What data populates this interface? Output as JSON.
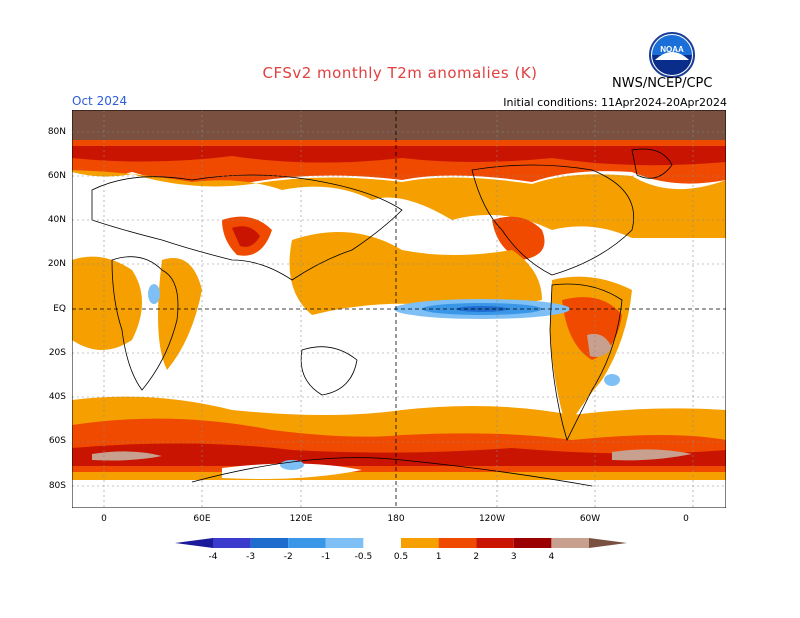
{
  "header": {
    "title": "CFSv2 monthly T2m anomalies (K)",
    "org": "NWS/NCEP/CPC",
    "logo_text": "NOAA",
    "month": "Oct 2024",
    "initial_conditions": "Initial conditions: 11Apr2024-20Apr2024"
  },
  "axes": {
    "lat_labels": [
      "80N",
      "60N",
      "40N",
      "20N",
      "EQ",
      "20S",
      "40S",
      "60S",
      "80S"
    ],
    "lon_labels": [
      "0",
      "60E",
      "120E",
      "180",
      "120W",
      "60W",
      "0"
    ]
  },
  "colorbar": {
    "labels": [
      "-4",
      "-3",
      "-2",
      "-1",
      "-0.5",
      "0.5",
      "1",
      "2",
      "3",
      "4"
    ],
    "colors": [
      "#1a1a9a",
      "#3a3acc",
      "#1f6ccf",
      "#3a97e8",
      "#7ec0f5",
      "#ffffff",
      "#f5a000",
      "#f04a00",
      "#c81400",
      "#9a0000",
      "#c8a090",
      "#7a5040"
    ]
  },
  "colors": {
    "land_outline": "#000000",
    "warm_1": "#f5a000",
    "warm_2": "#f04a00",
    "warm_3": "#c81400",
    "warm_4": "#9a0000",
    "warm_5": "#c8a090",
    "warm_6": "#7a5040",
    "cool_1": "#7ec0f5",
    "cool_2": "#3a97e8",
    "cool_3": "#1f6ccf"
  }
}
